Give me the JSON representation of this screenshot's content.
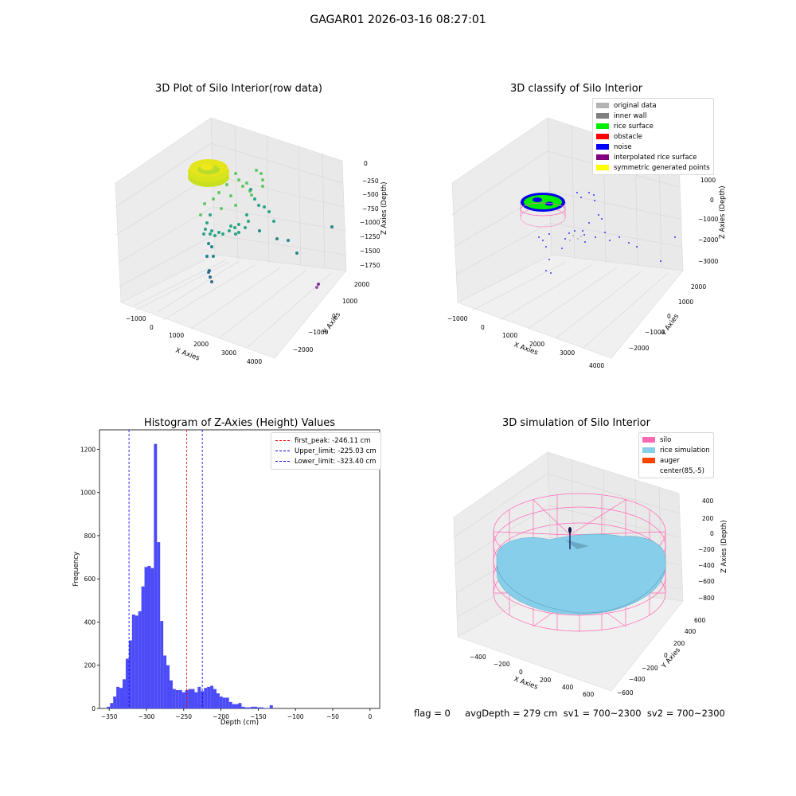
{
  "suptitle": "GAGAR01 2026-03-16 08:27:01",
  "footer": "flag = 0     avgDepth = 279 cm  sv1 = 700~2300  sv2 = 700~2300",
  "chart_data": [
    {
      "type": "scatter",
      "title": "3D Plot of Silo Interior(row data)",
      "xlabel": "X Axies",
      "ylabel": "Y Axies",
      "zlabel": "Z Axies (Depth)",
      "xticks": [
        "−1000",
        "0",
        "1000",
        "2000",
        "3000",
        "4000"
      ],
      "yticks": [
        "2000",
        "1000",
        "0",
        "−1000",
        "−2000"
      ],
      "zticks": [
        "0",
        "−250",
        "−500",
        "−750",
        "−1000",
        "−1250",
        "−1500",
        "−1750"
      ]
    },
    {
      "type": "scatter",
      "title": "3D classify of Silo Interior",
      "xlabel": "X Axies",
      "ylabel": "Y Axies",
      "zlabel": "Z Axies (Depth)",
      "xticks": [
        "−1000",
        "0",
        "1000",
        "2000",
        "3000",
        "4000"
      ],
      "yticks": [
        "2000",
        "1000",
        "0",
        "−1000",
        "−2000"
      ],
      "zticks": [
        "1000",
        "0",
        "−1000",
        "−2000",
        "−3000"
      ],
      "legend": [
        {
          "name": "original data",
          "color": "#b3b3b3"
        },
        {
          "name": "inner wall",
          "color": "#808080"
        },
        {
          "name": "rice surface",
          "color": "#00ee00"
        },
        {
          "name": "obstacle",
          "color": "#ff0000"
        },
        {
          "name": "noise",
          "color": "#0000ff"
        },
        {
          "name": "interpolated rice surface",
          "color": "#800080"
        },
        {
          "name": "symmetric generated points",
          "color": "#ffff00"
        }
      ]
    },
    {
      "type": "bar",
      "title": "Histogram of Z-Axies (Height) Values",
      "xlabel": "Depth (cm)",
      "ylabel": "Frequency",
      "xlim": [
        -363,
        13
      ],
      "ylim": [
        0,
        1290
      ],
      "xticks": [
        -350,
        -300,
        -250,
        -200,
        -150,
        -100,
        -50,
        0
      ],
      "xtick_labels": [
        "−350",
        "−300",
        "−250",
        "−200",
        "−150",
        "−100",
        "−50",
        "0"
      ],
      "yticks": [
        0,
        200,
        400,
        600,
        800,
        1000,
        1200
      ],
      "bin_start": -353,
      "bin_width": 4.2,
      "values": [
        8,
        25,
        55,
        100,
        95,
        135,
        230,
        315,
        435,
        430,
        450,
        565,
        655,
        660,
        650,
        1225,
        770,
        405,
        245,
        200,
        130,
        90,
        85,
        85,
        75,
        85,
        90,
        90,
        75,
        100,
        80,
        95,
        100,
        105,
        90,
        70,
        55,
        50,
        50,
        30,
        20,
        20,
        25,
        8,
        5,
        5,
        8,
        8,
        5,
        5,
        2,
        2,
        15
      ],
      "bar_color": "#4b4bf7",
      "vlines": [
        {
          "x": -246.11,
          "color": "#ff0000",
          "label": "first_peak: -246.11 cm"
        },
        {
          "x": -225.03,
          "color": "#0000ff",
          "label": "Upper_limit: -225.03 cm"
        },
        {
          "x": -323.4,
          "color": "#0000ff",
          "label": "Lower_limit: -323.40 cm"
        }
      ]
    },
    {
      "type": "area",
      "title": "3D simulation of Silo Interior",
      "xlabel": "X Axies",
      "ylabel": "Y Axies",
      "zlabel": "Z Axies (Depth)",
      "xticks": [
        "−400",
        "−200",
        "0",
        "200",
        "400",
        "600"
      ],
      "yticks": [
        "600",
        "400",
        "200",
        "0",
        "−200",
        "−400",
        "−600"
      ],
      "zticks": [
        "400",
        "200",
        "0",
        "−200",
        "−400",
        "−600",
        "−800"
      ],
      "legend": [
        {
          "name": "silo",
          "color": "#ff69b4"
        },
        {
          "name": "rice simulation",
          "color": "#87ceeb"
        },
        {
          "name": "auger",
          "color": "#ff4500"
        },
        {
          "name": "center(85,-5)",
          "color": ""
        }
      ]
    }
  ]
}
